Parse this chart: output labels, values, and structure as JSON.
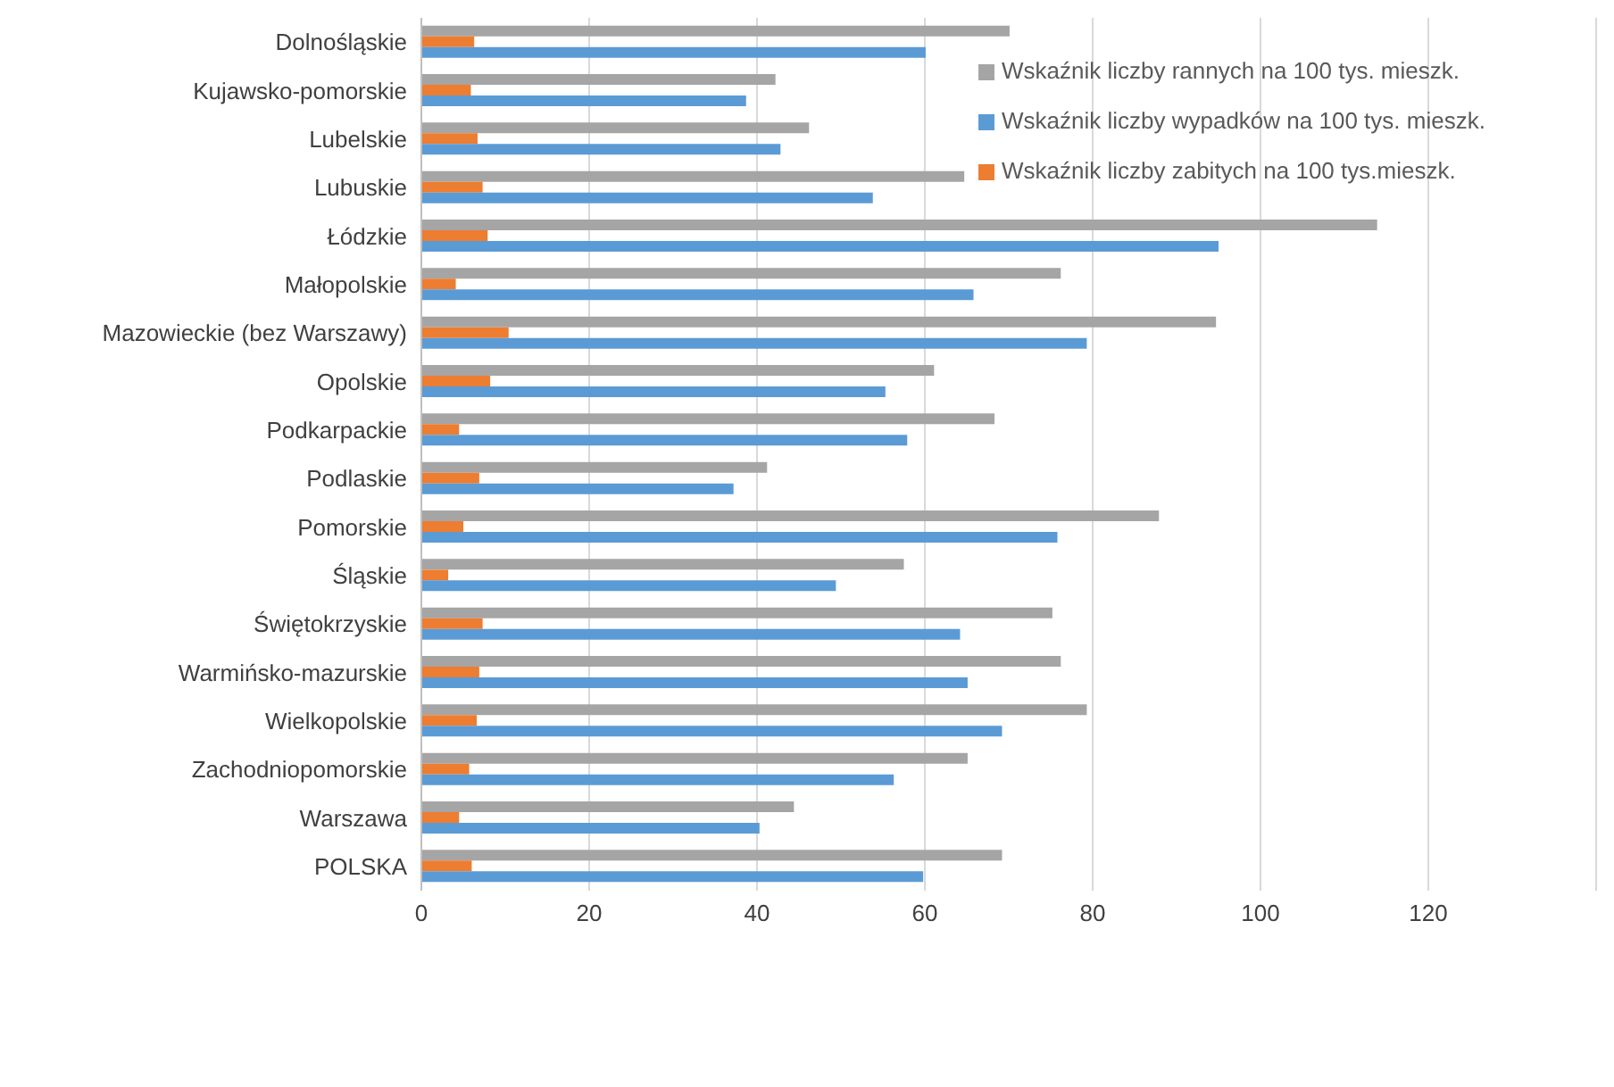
{
  "chart_data": {
    "type": "bar",
    "orientation": "horizontal",
    "categories": [
      "Dolnośląskie",
      "Kujawsko-pomorskie",
      "Lubelskie",
      "Lubuskie",
      "Łódzkie",
      "Małopolskie",
      "Mazowieckie (bez Warszawy)",
      "Opolskie",
      "Podkarpackie",
      "Podlaskie",
      "Pomorskie",
      "Śląskie",
      "Świętokrzyskie",
      "Warmińsko-mazurskie",
      "Wielkopolskie",
      "Zachodniopomorskie",
      "Warszawa",
      "POLSKA"
    ],
    "series": [
      {
        "name": "Wskaźnik liczby rannych na 100 tys. mieszk.",
        "color": "#a5a5a5",
        "values": [
          70.1,
          42.2,
          46.2,
          64.7,
          113.9,
          76.2,
          94.7,
          61.1,
          68.3,
          41.2,
          87.9,
          57.5,
          75.2,
          76.2,
          79.3,
          65.1,
          44.4,
          69.2
        ]
      },
      {
        "name": "Wskaźnik liczby zabitych na 100 tys.mieszk.",
        "color": "#ed7d31",
        "values": [
          6.3,
          5.9,
          6.7,
          7.3,
          7.9,
          4.1,
          10.4,
          8.2,
          4.5,
          6.9,
          5.0,
          3.2,
          7.3,
          6.9,
          6.6,
          5.7,
          4.5,
          6.0
        ]
      },
      {
        "name": "Wskaźnik liczby wypadków na 100 tys. mieszk.",
        "color": "#5b9bd5",
        "values": [
          60.1,
          38.7,
          42.8,
          53.8,
          95.0,
          65.8,
          79.3,
          55.3,
          57.9,
          37.2,
          75.8,
          49.4,
          64.2,
          65.1,
          69.2,
          56.3,
          40.3,
          59.8
        ]
      }
    ],
    "xlim": [
      0,
      140
    ],
    "xticks": [
      0,
      20,
      40,
      60,
      80,
      100,
      120
    ],
    "grid": "x",
    "legend": "top right"
  }
}
